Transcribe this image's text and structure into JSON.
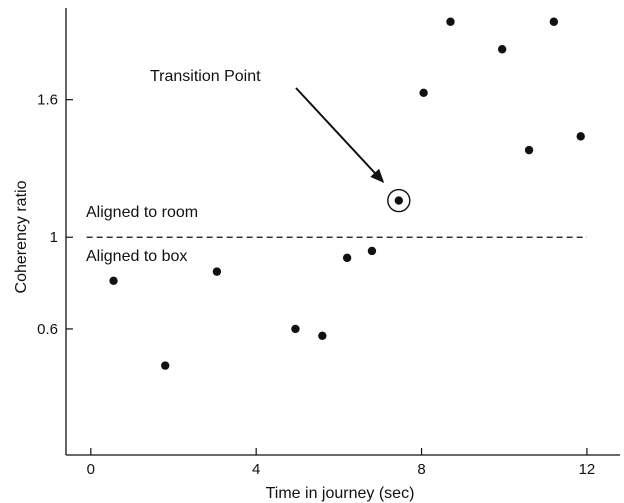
{
  "chart_data": {
    "type": "scatter",
    "xlabel": "Time in journey (sec)",
    "ylabel": "Coherency ratio",
    "xlim": [
      -0.6,
      12.8
    ],
    "ylim": [
      0.05,
      2.0
    ],
    "x_ticks": [
      0,
      4,
      8,
      12
    ],
    "x_tick_labels": [
      "0",
      "4",
      "8",
      "12"
    ],
    "y_ticks": [
      0.6,
      1,
      1.6
    ],
    "y_tick_labels": [
      "0.6",
      "1",
      "1.6"
    ],
    "grid": false,
    "series": [
      {
        "points": [
          {
            "x": 0.55,
            "y": 0.81
          },
          {
            "x": 1.8,
            "y": 0.44
          },
          {
            "x": 3.05,
            "y": 0.85
          },
          {
            "x": 4.95,
            "y": 0.6
          },
          {
            "x": 5.6,
            "y": 0.57
          },
          {
            "x": 6.2,
            "y": 0.91
          },
          {
            "x": 6.8,
            "y": 0.94
          },
          {
            "x": 7.45,
            "y": 1.16
          },
          {
            "x": 8.05,
            "y": 1.63
          },
          {
            "x": 8.7,
            "y": 1.94
          },
          {
            "x": 9.95,
            "y": 1.82
          },
          {
            "x": 10.6,
            "y": 1.38
          },
          {
            "x": 11.2,
            "y": 1.94
          },
          {
            "x": 11.85,
            "y": 1.44
          }
        ]
      }
    ],
    "reference_line": {
      "y": 1,
      "style": "dashed"
    },
    "annotations": {
      "transition": {
        "text": "Transition Point",
        "x": 7.45,
        "y": 1.16
      },
      "aligned_room": {
        "text": "Aligned to room"
      },
      "aligned_box": {
        "text": "Aligned to box"
      }
    }
  }
}
